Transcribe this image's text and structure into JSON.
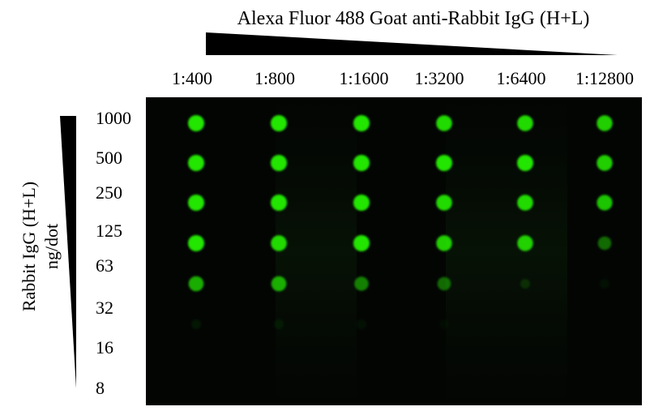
{
  "figure": {
    "title": "Alexa Fluor 488 Goat anti-Rabbit IgG (H+L)",
    "y_axis_title_line1": "Rabbit IgG (H+L)",
    "y_axis_title_line2": "ng/dot",
    "dilutions": [
      "1:400",
      "1:800",
      "1:1600",
      "1:3200",
      "1:6400",
      "1:12800"
    ],
    "amounts": [
      "1000",
      "500",
      "250",
      "125",
      "63",
      "32",
      "16",
      "8"
    ],
    "dot_color": "#22e600",
    "background_color": "#030503"
  },
  "chart_data": {
    "type": "heatmap",
    "x": [
      "1:400",
      "1:800",
      "1:1600",
      "1:3200",
      "1:6400",
      "1:12800"
    ],
    "y": [
      "1000",
      "500",
      "250",
      "125",
      "63",
      "32",
      "16",
      "8"
    ],
    "intensity": [
      [
        1.0,
        1.0,
        1.0,
        0.95,
        0.95,
        0.9
      ],
      [
        1.0,
        1.0,
        1.0,
        1.0,
        1.0,
        0.9
      ],
      [
        1.0,
        1.0,
        1.0,
        0.95,
        0.95,
        0.85
      ],
      [
        1.0,
        0.95,
        1.0,
        0.9,
        0.9,
        0.45
      ],
      [
        0.75,
        0.75,
        0.55,
        0.45,
        0.15,
        0.05
      ],
      [
        0.08,
        0.08,
        0.05,
        0.03,
        0.0,
        0.0
      ],
      [
        0.0,
        0.0,
        0.0,
        0.0,
        0.0,
        0.0
      ],
      [
        0.0,
        0.0,
        0.0,
        0.0,
        0.0,
        0.0
      ]
    ]
  }
}
